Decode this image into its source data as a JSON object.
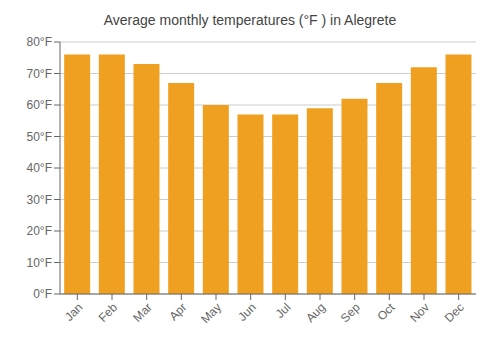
{
  "chart_data": {
    "type": "bar",
    "title": "Average monthly temperatures (°F ) in Alegrete",
    "categories": [
      "Jan",
      "Feb",
      "Mar",
      "Apr",
      "May",
      "Jun",
      "Jul",
      "Aug",
      "Sep",
      "Oct",
      "Nov",
      "Dec"
    ],
    "values": [
      76,
      76,
      73,
      67,
      60,
      57,
      57,
      59,
      62,
      67,
      72,
      76
    ],
    "color": "#F0A020",
    "ylim": [
      0,
      80
    ],
    "yticks": [
      {
        "value": 0,
        "label": "0°F"
      },
      {
        "value": 10,
        "label": "10°F"
      },
      {
        "value": 20,
        "label": "20°F"
      },
      {
        "value": 30,
        "label": "30°F"
      },
      {
        "value": 40,
        "label": "40°F"
      },
      {
        "value": 50,
        "label": "50°F"
      },
      {
        "value": 60,
        "label": "60°F"
      },
      {
        "value": 70,
        "label": "70°F"
      },
      {
        "value": 80,
        "label": "80°F"
      }
    ],
    "grid": true
  }
}
